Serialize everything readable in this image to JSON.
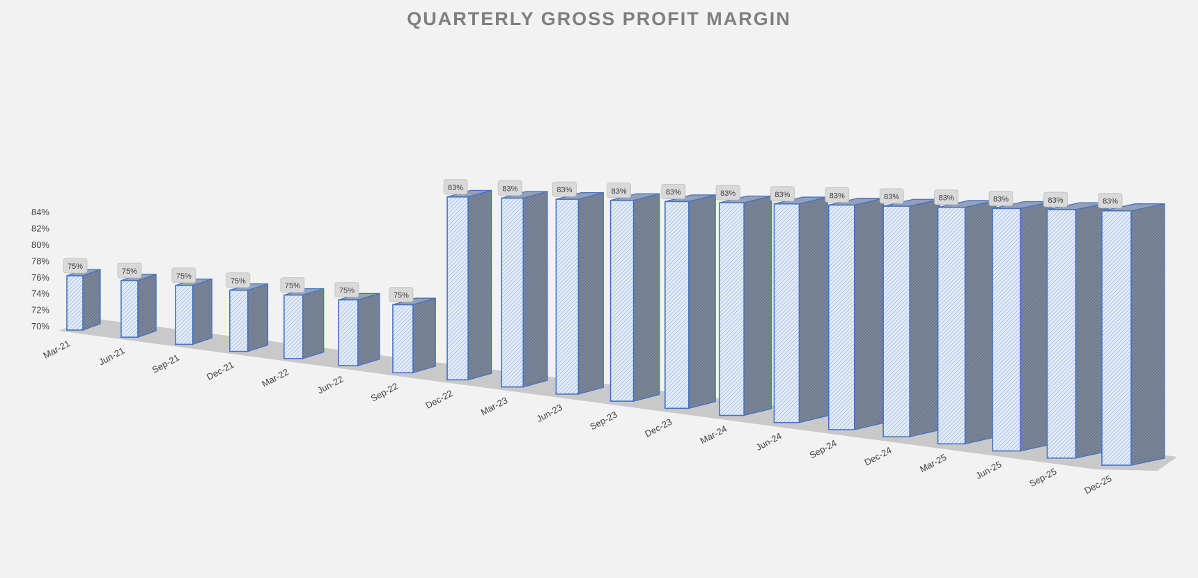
{
  "chart_data": {
    "type": "bar",
    "title": "QUARTERLY GROSS PROFIT MARGIN",
    "xlabel": "",
    "ylabel": "",
    "ylim": [
      70,
      84
    ],
    "y_ticks": [
      "70%",
      "72%",
      "74%",
      "76%",
      "78%",
      "80%",
      "82%",
      "84%"
    ],
    "categories": [
      "Mar-21",
      "Jun-21",
      "Sep-21",
      "Dec-21",
      "Mar-22",
      "Jun-22",
      "Sep-22",
      "Dec-22",
      "Mar-23",
      "Jun-23",
      "Sep-23",
      "Dec-23",
      "Mar-24",
      "Jun-24",
      "Sep-24",
      "Dec-24",
      "Mar-25",
      "Jun-25",
      "Sep-25",
      "Dec-25"
    ],
    "values": [
      75,
      75,
      75,
      75,
      75,
      75,
      75,
      83,
      83,
      83,
      83,
      83,
      83,
      83,
      83,
      83,
      83,
      83,
      83,
      83
    ],
    "data_labels": [
      "75%",
      "75%",
      "75%",
      "75%",
      "75%",
      "75%",
      "75%",
      "83%",
      "83%",
      "83%",
      "83%",
      "83%",
      "83%",
      "83%",
      "83%",
      "83%",
      "83%",
      "83%",
      "83%",
      "83%"
    ],
    "grid": false,
    "legend": "none",
    "style": "3d-column",
    "colors": {
      "bar_front": "#dce6f5",
      "bar_edge": "#4472c4",
      "bar_side": "#7b8595",
      "bar_top": "#9aa6bd",
      "floor": "#c9c9c9",
      "label_box": "#d9d9d9",
      "text": "#404040",
      "title": "#7f7f7f",
      "background": "#f2f2f2"
    }
  }
}
